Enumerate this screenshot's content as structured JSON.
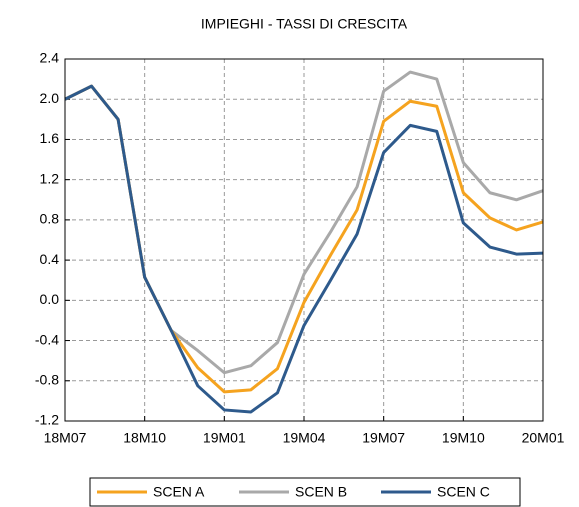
{
  "chart_data": {
    "type": "line",
    "title": "IMPIEGHI - TASSI DI CRESCITA",
    "categories": [
      "18M07",
      null,
      null,
      "18M10",
      null,
      null,
      "19M01",
      null,
      null,
      "19M04",
      null,
      null,
      "19M07",
      null,
      null,
      "19M10",
      null,
      null,
      "20M01"
    ],
    "series": [
      {
        "name": "SCEN A",
        "color": "#f5a31f",
        "values": [
          2.0,
          2.13,
          1.8,
          0.23,
          -0.3,
          -0.67,
          -0.91,
          -0.89,
          -0.68,
          -0.02,
          0.45,
          0.9,
          1.78,
          1.98,
          1.93,
          1.07,
          0.82,
          0.7,
          0.78
        ]
      },
      {
        "name": "SCEN B",
        "color": "#a9a9a9",
        "values": [
          2.0,
          2.13,
          1.8,
          0.23,
          -0.3,
          -0.5,
          -0.72,
          -0.65,
          -0.42,
          0.26,
          0.68,
          1.13,
          2.08,
          2.27,
          2.2,
          1.37,
          1.07,
          1.0,
          1.09
        ]
      },
      {
        "name": "SCEN C",
        "color": "#2e5a8c",
        "values": [
          2.0,
          2.13,
          1.8,
          0.23,
          -0.3,
          -0.85,
          -1.09,
          -1.11,
          -0.92,
          -0.25,
          0.2,
          0.66,
          1.47,
          1.74,
          1.68,
          0.77,
          0.53,
          0.46,
          0.47
        ]
      }
    ],
    "ylim": [
      -1.2,
      2.4
    ],
    "yticks": [
      -1.2,
      -0.8,
      -0.4,
      {
        "value": 0,
        "label": "0.0"
      },
      0.4,
      0.8,
      1.2,
      1.6,
      {
        "value": 2,
        "label": "2.0"
      },
      2.4
    ],
    "grid": true,
    "legend": "bottom"
  }
}
